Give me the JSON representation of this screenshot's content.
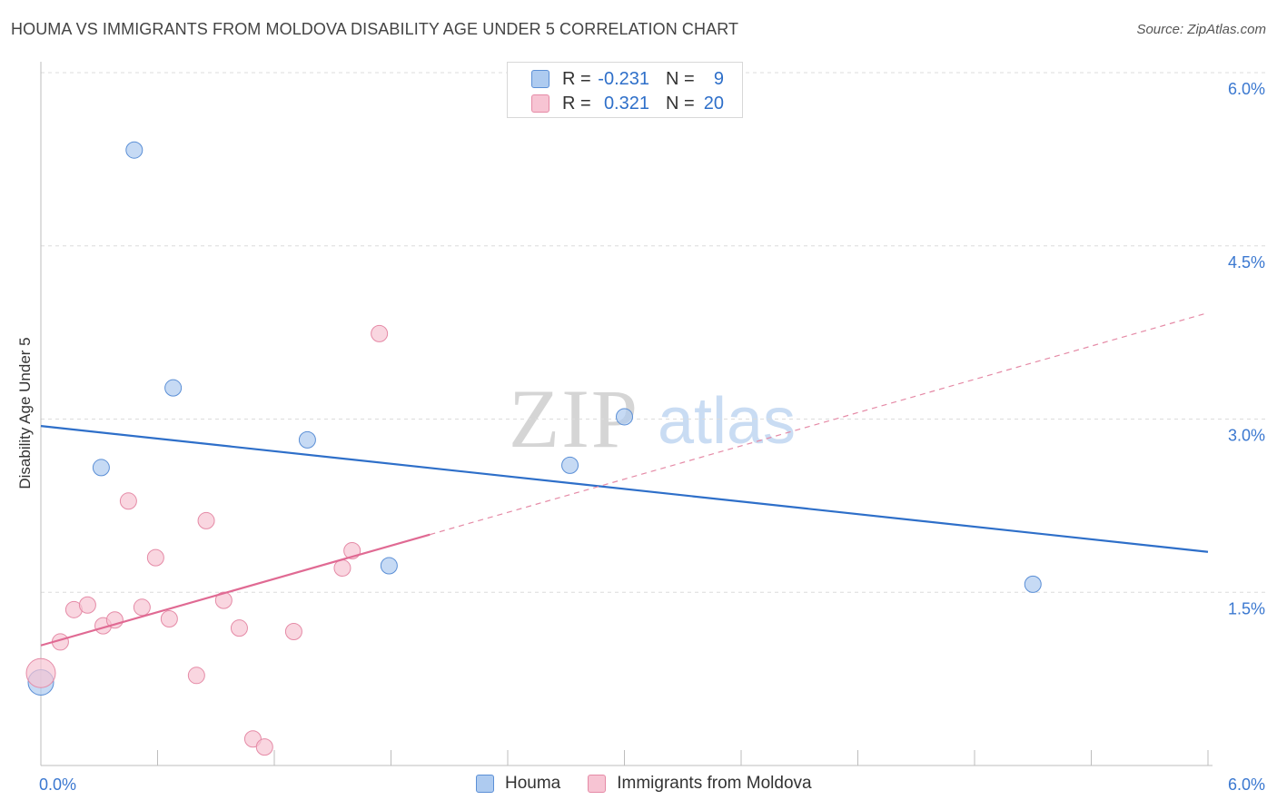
{
  "title": "HOUMA VS IMMIGRANTS FROM MOLDOVA DISABILITY AGE UNDER 5 CORRELATION CHART",
  "source": "Source: ZipAtlas.com",
  "watermark": {
    "zip": "ZIP",
    "atlas": "atlas"
  },
  "legend_top": {
    "rows": [
      {
        "r_label": "R =",
        "r_value": "-0.231",
        "n_label": "N =",
        "n_value": "9",
        "color": "#aecbf0",
        "border": "#5b8fd6"
      },
      {
        "r_label": "R =",
        "r_value": "0.321",
        "n_label": "N =",
        "n_value": "20",
        "color": "#f7c4d3",
        "border": "#e58aa6"
      }
    ]
  },
  "legend_bottom": {
    "items": [
      {
        "label": "Houma",
        "color": "#aecbf0",
        "border": "#5b8fd6"
      },
      {
        "label": "Immigrants from Moldova",
        "color": "#f7c4d3",
        "border": "#e58aa6"
      }
    ]
  },
  "chart_data": {
    "type": "scatter",
    "title": "HOUMA VS IMMIGRANTS FROM MOLDOVA DISABILITY AGE UNDER 5 CORRELATION CHART",
    "xlabel": "",
    "ylabel": "Disability Age Under 5",
    "xlim": [
      0,
      6.0
    ],
    "ylim": [
      0,
      6.0
    ],
    "x_tick_labels": [
      "0.0%",
      "6.0%"
    ],
    "y_tick_labels": [
      "1.5%",
      "3.0%",
      "4.5%",
      "6.0%"
    ],
    "y_ticks": [
      1.5,
      3.0,
      4.5,
      6.0
    ],
    "grid": true,
    "series": [
      {
        "name": "Houma",
        "color": "#aecbf0",
        "edge": "#5b8fd6",
        "points": [
          [
            0.0,
            0.72,
            14
          ],
          [
            0.48,
            5.33,
            9
          ],
          [
            0.68,
            3.27,
            9
          ],
          [
            0.31,
            2.58,
            9
          ],
          [
            1.37,
            2.82,
            9
          ],
          [
            1.79,
            1.73,
            9
          ],
          [
            2.72,
            2.6,
            9
          ],
          [
            3.0,
            3.02,
            9
          ],
          [
            5.1,
            1.57,
            9
          ]
        ],
        "trend": {
          "x0": 0.0,
          "y0": 2.94,
          "x1": 6.0,
          "y1": 1.85,
          "color": "#2e6fc9"
        }
      },
      {
        "name": "Immigrants from Moldova",
        "color": "#f7c4d3",
        "edge": "#e58aa6",
        "points": [
          [
            0.0,
            0.8,
            16
          ],
          [
            0.1,
            1.07,
            9
          ],
          [
            0.17,
            1.35,
            9
          ],
          [
            0.24,
            1.39,
            9
          ],
          [
            0.32,
            1.21,
            9
          ],
          [
            0.38,
            1.26,
            9
          ],
          [
            0.45,
            2.29,
            9
          ],
          [
            0.52,
            1.37,
            9
          ],
          [
            0.59,
            1.8,
            9
          ],
          [
            0.66,
            1.27,
            9
          ],
          [
            0.8,
            0.78,
            9
          ],
          [
            0.85,
            2.12,
            9
          ],
          [
            0.94,
            1.43,
            9
          ],
          [
            1.02,
            1.19,
            9
          ],
          [
            1.09,
            0.23,
            9
          ],
          [
            1.15,
            0.16,
            9
          ],
          [
            1.3,
            1.16,
            9
          ],
          [
            1.55,
            1.71,
            9
          ],
          [
            1.6,
            1.86,
            9
          ],
          [
            1.74,
            3.74,
            9
          ]
        ],
        "trend": {
          "x0": 0.0,
          "y0": 1.04,
          "x1": 2.0,
          "y1": 2.0,
          "color": "#e06a93"
        },
        "trend_ext": {
          "x0": 2.0,
          "y0": 2.0,
          "x1": 6.0,
          "y1": 3.92,
          "color": "#e58aa6"
        }
      }
    ]
  }
}
